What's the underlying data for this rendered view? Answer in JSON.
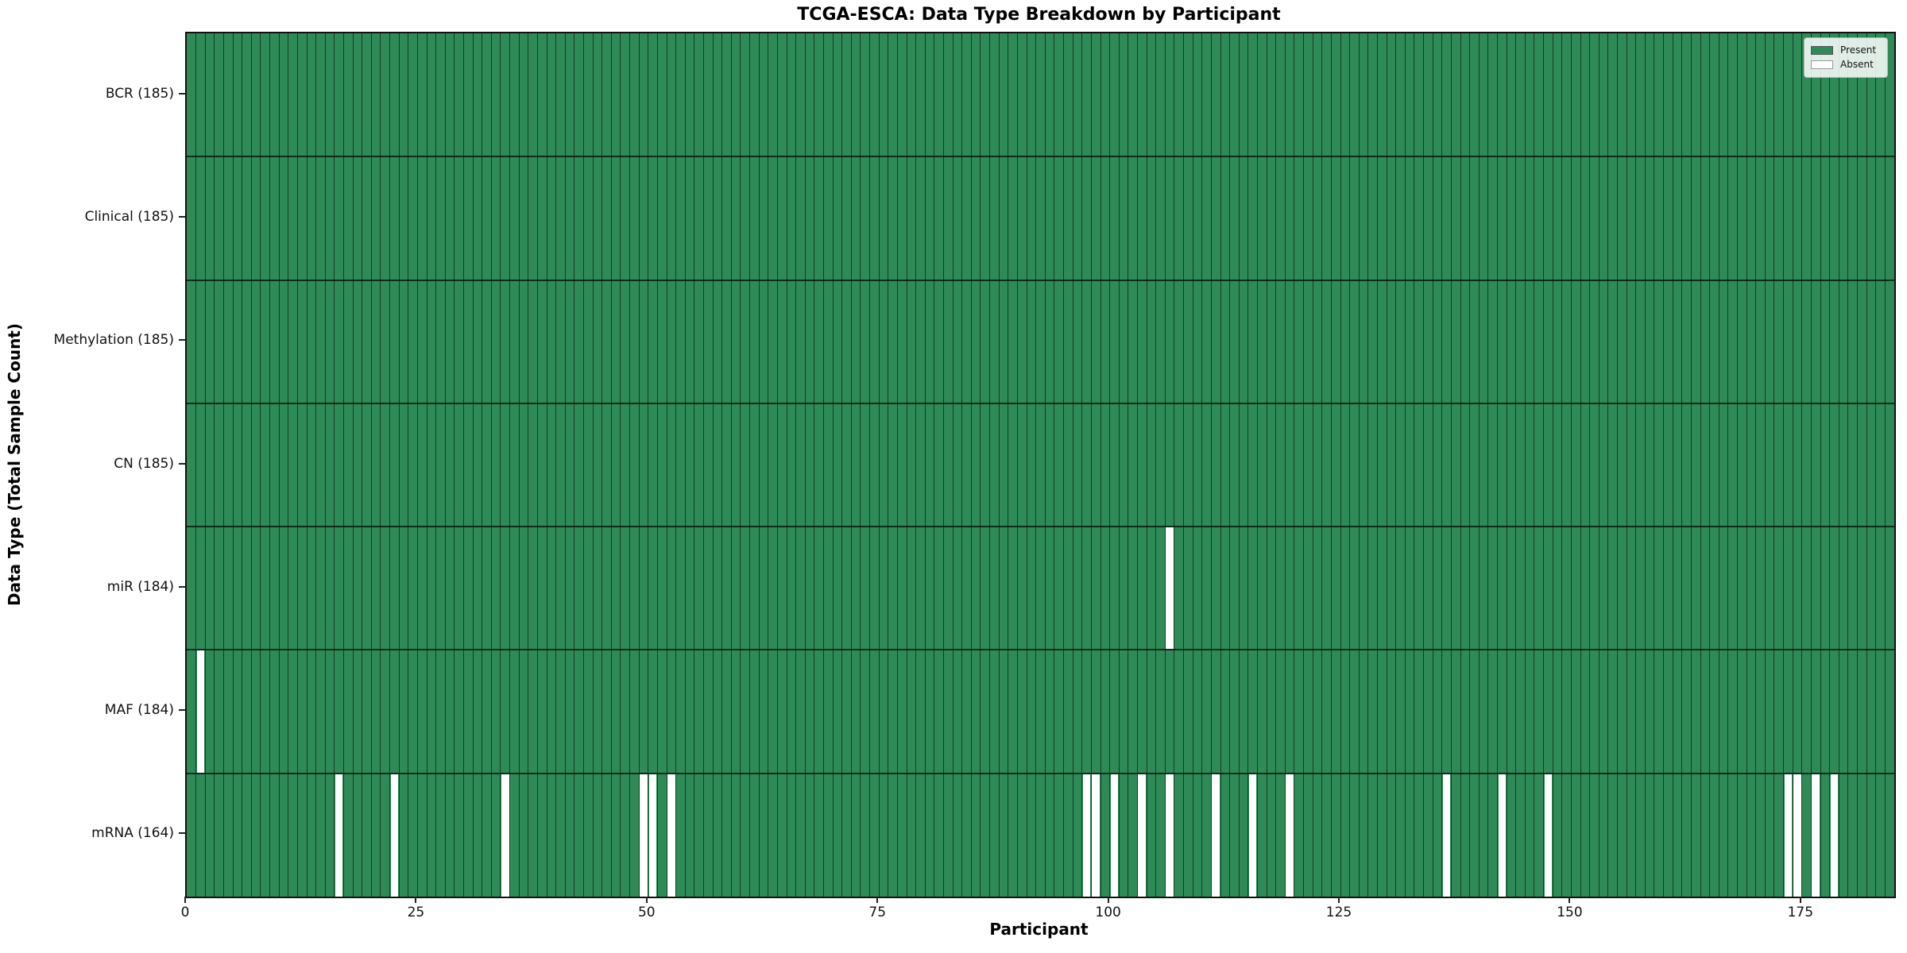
{
  "title": "TCGA-ESCA: Data Type Breakdown by Participant",
  "chart_data": {
    "type": "heatmap",
    "title": "TCGA-ESCA: Data Type Breakdown by Participant",
    "xlabel": "Participant",
    "ylabel": "Data Type (Total Sample Count)",
    "n_participants": 185,
    "x_ticks": [
      0,
      25,
      50,
      75,
      100,
      125,
      150,
      175
    ],
    "x_range": [
      0,
      185
    ],
    "grid": false,
    "legend_position": "upper right",
    "legend": [
      {
        "label": "Present",
        "color": "#2e8b57"
      },
      {
        "label": "Absent",
        "color": "#ffffff"
      }
    ],
    "rows": [
      {
        "label": "BCR (185)",
        "data_type": "BCR",
        "present_count": 185,
        "absent_participants": []
      },
      {
        "label": "Clinical (185)",
        "data_type": "Clinical",
        "present_count": 185,
        "absent_participants": []
      },
      {
        "label": "Methylation (185)",
        "data_type": "Methylation",
        "present_count": 185,
        "absent_participants": []
      },
      {
        "label": "CN (185)",
        "data_type": "CN",
        "present_count": 185,
        "absent_participants": []
      },
      {
        "label": "miR (184)",
        "data_type": "miR",
        "present_count": 184,
        "absent_participants": [
          106
        ]
      },
      {
        "label": "MAF (184)",
        "data_type": "MAF",
        "present_count": 184,
        "absent_participants": [
          1
        ]
      },
      {
        "label": "mRNA (164)",
        "data_type": "mRNA",
        "present_count": 164,
        "absent_participants": [
          16,
          22,
          34,
          49,
          50,
          52,
          97,
          98,
          100,
          103,
          106,
          111,
          115,
          119,
          136,
          142,
          147,
          173,
          174,
          176,
          178
        ]
      }
    ],
    "colors": {
      "present": "#2e8b57",
      "absent": "#ffffff",
      "bar_edge": "#0a2316",
      "row_separator": "#05140c"
    }
  }
}
